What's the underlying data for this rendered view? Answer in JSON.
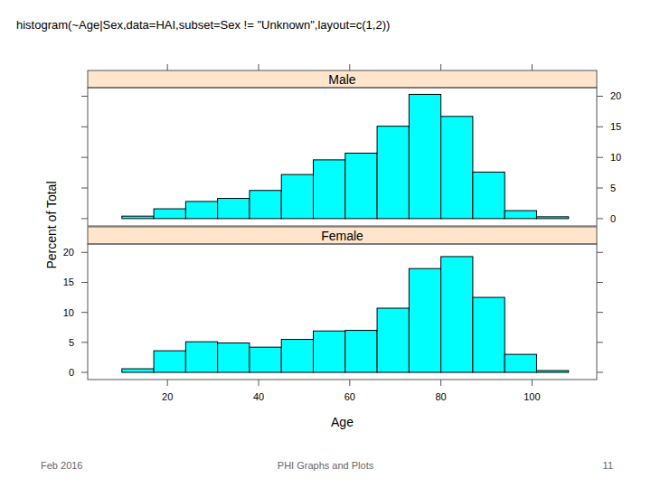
{
  "chart_data": {
    "type": "histogram",
    "title": "histogram(~Age|Sex,data=HAI,subset=Sex != \"Unknown\",layout=c(1,2))",
    "x_label": "Age",
    "y_label": "Percent of Total",
    "bins": [
      10,
      17,
      24,
      31,
      38,
      45,
      52,
      59,
      66,
      73,
      80,
      87,
      94,
      101,
      108
    ],
    "series": [
      {
        "name": "Male",
        "color": "#00ffff",
        "values": [
          0.4,
          1.6,
          2.8,
          3.3,
          4.6,
          7.2,
          9.6,
          10.7,
          15.1,
          20.3,
          16.7,
          7.6,
          1.3,
          0.3
        ]
      },
      {
        "name": "Female",
        "color": "#00ffff",
        "values": [
          0.6,
          3.6,
          5.1,
          4.9,
          4.2,
          5.5,
          6.9,
          7.0,
          10.7,
          17.3,
          19.3,
          12.5,
          3.0,
          0.3
        ]
      }
    ],
    "xlim": [
      2.5,
      114.2
    ],
    "xticks": [
      20,
      40,
      60,
      80,
      100
    ],
    "ylim": [
      -1.2,
      21.4
    ],
    "yticks": [
      0,
      5,
      10,
      15,
      20
    ]
  },
  "footer": {
    "date": "Feb 2016",
    "title": "PHI Graphs and Plots",
    "page": "11"
  }
}
